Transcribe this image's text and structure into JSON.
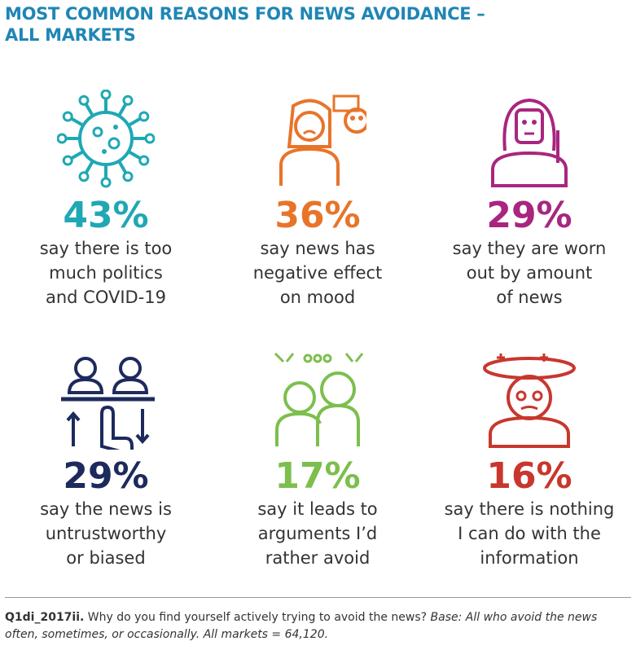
{
  "title": {
    "lines": [
      "MOST COMMON REASONS FOR NEWS AVOIDANCE –",
      "ALL MARKETS"
    ]
  },
  "items": [
    {
      "value": "43%",
      "color": "#1fa8b4",
      "lines": [
        "say there is too",
        "much politics",
        "and COVID-19"
      ]
    },
    {
      "value": "36%",
      "color": "#e8742a",
      "lines": [
        "say news has",
        "negative effect",
        "on mood"
      ]
    },
    {
      "value": "29%",
      "color": "#a8267f",
      "lines": [
        "say they are worn",
        "out by amount",
        "of news"
      ]
    },
    {
      "value": "29%",
      "color": "#1d2a5c",
      "lines": [
        "say the news is",
        "untrustworthy",
        "or biased"
      ]
    },
    {
      "value": "17%",
      "color": "#7cbf4d",
      "lines": [
        "say it leads to",
        "arguments I’d",
        "rather avoid"
      ]
    },
    {
      "value": "16%",
      "color": "#c8372d",
      "lines": [
        "say there is nothing",
        "I can do with the",
        "information"
      ]
    }
  ],
  "footnote": {
    "code": "Q1di_2017ii.",
    "question": "Why do you find yourself actively trying to avoid the news?",
    "base": "Base: All who avoid the news often, sometimes, or occasionally. All markets = 64,120."
  }
}
